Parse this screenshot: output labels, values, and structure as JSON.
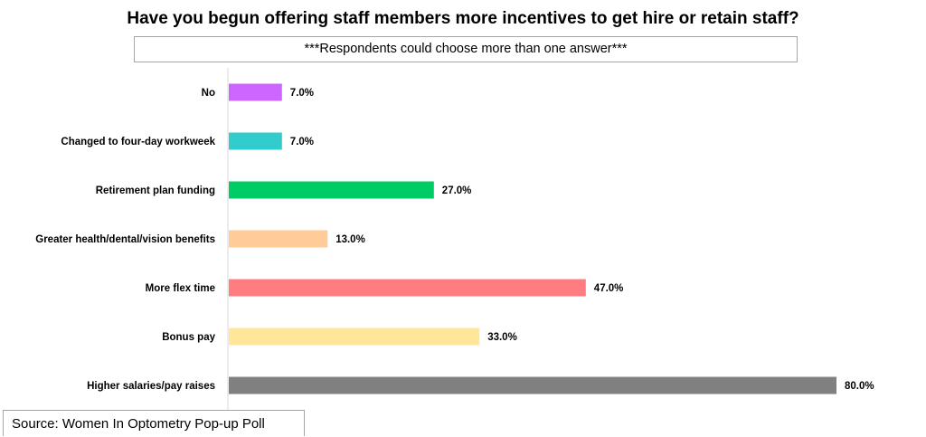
{
  "chart_data": {
    "type": "bar",
    "orientation": "horizontal",
    "title": "Have you begun offering staff members more incentives to get hire or retain staff?",
    "subtitle": "***Respondents could choose more than one answer***",
    "source": "Source: Women In Optometry Pop-up Poll",
    "categories": [
      "No",
      "Changed to four-day workweek",
      "Retirement plan funding",
      "Greater health/dental/vision benefits",
      "More flex time",
      "Bonus pay",
      "Higher salaries/pay raises"
    ],
    "values": [
      7.0,
      7.0,
      27.0,
      13.0,
      47.0,
      33.0,
      80.0
    ],
    "value_labels": [
      "7.0%",
      "7.0%",
      "27.0%",
      "13.0%",
      "47.0%",
      "33.0%",
      "80.0%"
    ],
    "colors": [
      "#cc66ff",
      "#33cccc",
      "#00cc66",
      "#ffcc99",
      "#ff7c80",
      "#ffe699",
      "#808080"
    ],
    "axis_color": "#d9d9d9",
    "grid": false,
    "legend": "none",
    "xlim": [
      0,
      80
    ]
  }
}
